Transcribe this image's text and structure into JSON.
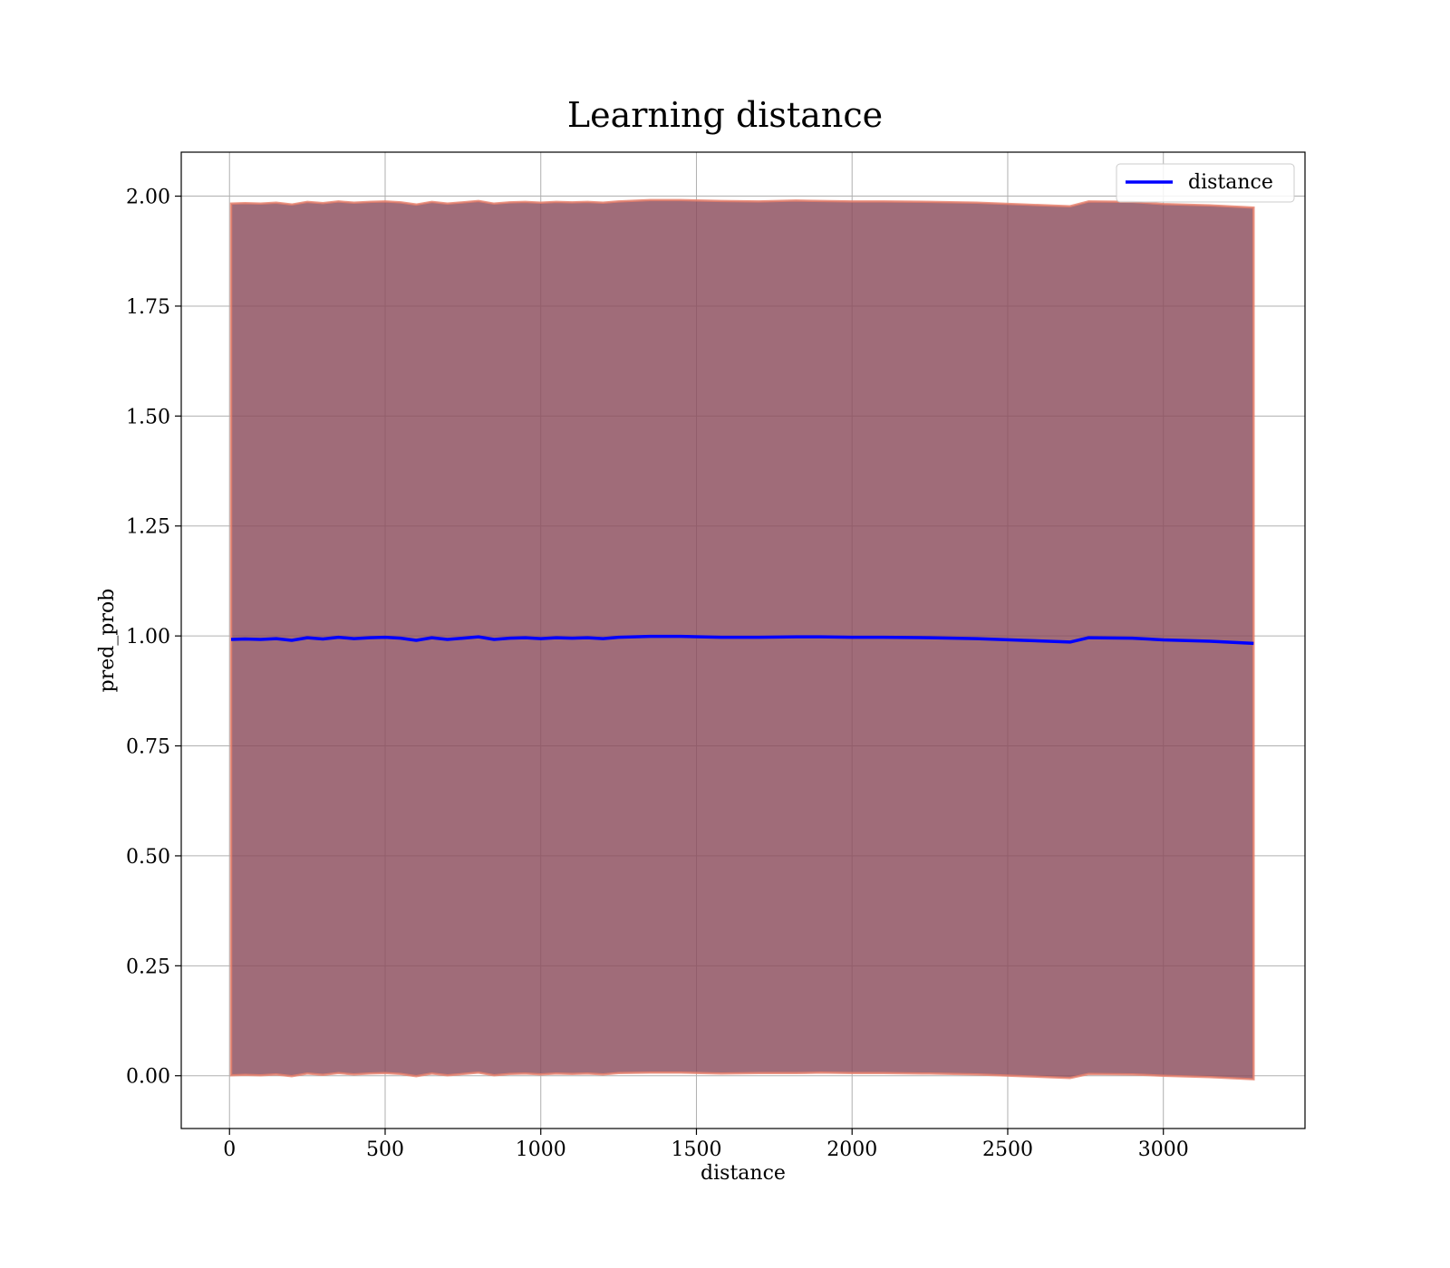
{
  "chart_data": {
    "type": "line",
    "title": "Learning distance",
    "xlabel": "distance",
    "ylabel": "pred_prob",
    "xlim": [
      -155,
      3455
    ],
    "ylim": [
      -0.12,
      2.1
    ],
    "xticks": [
      0,
      500,
      1000,
      1500,
      2000,
      2500,
      3000
    ],
    "yticks": [
      0.0,
      0.25,
      0.5,
      0.75,
      1.0,
      1.25,
      1.5,
      1.75,
      2.0
    ],
    "xtick_labels": [
      "0",
      "500",
      "1000",
      "1500",
      "2000",
      "2500",
      "3000"
    ],
    "ytick_labels": [
      "0.00",
      "0.25",
      "0.50",
      "0.75",
      "1.00",
      "1.25",
      "1.50",
      "1.75",
      "2.00"
    ],
    "grid": true,
    "legend": {
      "position": "top-right",
      "entries": [
        "distance"
      ]
    },
    "series": [
      {
        "name": "distance",
        "color": "#0000ff",
        "x": [
          5,
          50,
          100,
          150,
          200,
          250,
          300,
          350,
          400,
          450,
          500,
          550,
          600,
          650,
          700,
          750,
          800,
          850,
          900,
          950,
          1000,
          1050,
          1100,
          1150,
          1200,
          1250,
          1350,
          1450,
          1580,
          1700,
          1820,
          1900,
          2000,
          2100,
          2250,
          2400,
          2550,
          2700,
          2760,
          2900,
          3000,
          3150,
          3290
        ],
        "y": [
          0.992,
          0.993,
          0.992,
          0.994,
          0.99,
          0.996,
          0.993,
          0.997,
          0.994,
          0.996,
          0.997,
          0.995,
          0.99,
          0.996,
          0.992,
          0.995,
          0.998,
          0.992,
          0.995,
          0.996,
          0.994,
          0.996,
          0.995,
          0.996,
          0.994,
          0.997,
          0.999,
          0.999,
          0.997,
          0.997,
          0.998,
          0.998,
          0.997,
          0.997,
          0.996,
          0.994,
          0.99,
          0.986,
          0.996,
          0.995,
          0.991,
          0.988,
          0.983
        ]
      }
    ],
    "bands": [
      {
        "fill": "#8b4c5c",
        "fill_opacity": 0.82,
        "edge": "#e8806a",
        "x": [
          5,
          50,
          100,
          150,
          200,
          250,
          300,
          350,
          400,
          450,
          500,
          550,
          600,
          650,
          700,
          750,
          800,
          850,
          900,
          950,
          1000,
          1050,
          1100,
          1150,
          1200,
          1250,
          1350,
          1450,
          1580,
          1700,
          1820,
          1900,
          2000,
          2100,
          2250,
          2400,
          2550,
          2700,
          2760,
          2900,
          3000,
          3150,
          3290
        ],
        "upper": [
          1.983,
          1.984,
          1.983,
          1.985,
          1.981,
          1.987,
          1.984,
          1.988,
          1.985,
          1.987,
          1.988,
          1.986,
          1.981,
          1.987,
          1.983,
          1.986,
          1.989,
          1.983,
          1.986,
          1.987,
          1.985,
          1.987,
          1.986,
          1.987,
          1.985,
          1.988,
          1.991,
          1.991,
          1.989,
          1.988,
          1.99,
          1.989,
          1.988,
          1.988,
          1.987,
          1.985,
          1.981,
          1.977,
          1.988,
          1.987,
          1.982,
          1.979,
          1.974
        ],
        "lower": [
          0.001,
          0.002,
          0.001,
          0.003,
          -0.001,
          0.005,
          0.002,
          0.006,
          0.003,
          0.005,
          0.006,
          0.004,
          -0.001,
          0.005,
          0.001,
          0.004,
          0.007,
          0.001,
          0.004,
          0.005,
          0.003,
          0.005,
          0.004,
          0.005,
          0.003,
          0.006,
          0.007,
          0.007,
          0.005,
          0.006,
          0.006,
          0.007,
          0.006,
          0.006,
          0.005,
          0.003,
          -0.001,
          -0.005,
          0.004,
          0.003,
          0.0,
          -0.003,
          -0.008
        ]
      }
    ]
  }
}
